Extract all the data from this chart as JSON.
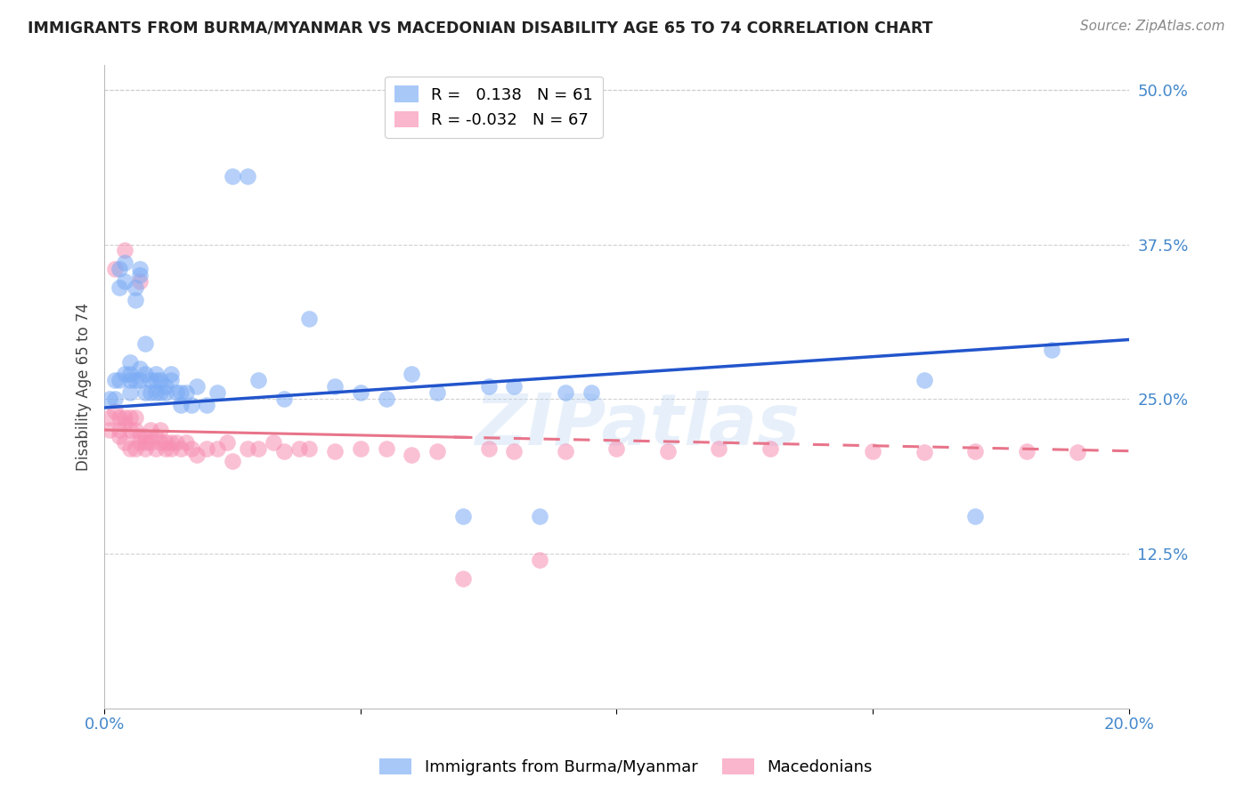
{
  "title": "IMMIGRANTS FROM BURMA/MYANMAR VS MACEDONIAN DISABILITY AGE 65 TO 74 CORRELATION CHART",
  "source": "Source: ZipAtlas.com",
  "ylabel": "Disability Age 65 to 74",
  "xlim": [
    0.0,
    0.2
  ],
  "ylim": [
    0.0,
    0.52
  ],
  "yticks": [
    0.125,
    0.25,
    0.375,
    0.5
  ],
  "ytick_labels": [
    "12.5%",
    "25.0%",
    "37.5%",
    "50.0%"
  ],
  "xtick_positions": [
    0.0,
    0.2
  ],
  "xtick_labels": [
    "0.0%",
    "20.0%"
  ],
  "grid_color": "#cccccc",
  "background_color": "#ffffff",
  "blue_R": 0.138,
  "blue_N": 61,
  "pink_R": -0.032,
  "pink_N": 67,
  "blue_color": "#7aabf5",
  "pink_color": "#f78fb3",
  "blue_line_color": "#2255cc",
  "pink_line_color": "#e8748a",
  "legend_label_blue": "Immigrants from Burma/Myanmar",
  "legend_label_pink": "Macedonians",
  "watermark": "ZIPatlas",
  "blue_x": [
    0.001,
    0.002,
    0.002,
    0.003,
    0.003,
    0.003,
    0.004,
    0.004,
    0.004,
    0.005,
    0.005,
    0.005,
    0.005,
    0.006,
    0.006,
    0.006,
    0.007,
    0.007,
    0.007,
    0.007,
    0.008,
    0.008,
    0.008,
    0.009,
    0.009,
    0.01,
    0.01,
    0.01,
    0.011,
    0.011,
    0.012,
    0.012,
    0.013,
    0.013,
    0.014,
    0.015,
    0.015,
    0.016,
    0.017,
    0.018,
    0.02,
    0.022,
    0.025,
    0.028,
    0.03,
    0.035,
    0.04,
    0.045,
    0.05,
    0.055,
    0.06,
    0.065,
    0.07,
    0.075,
    0.08,
    0.085,
    0.09,
    0.095,
    0.16,
    0.17,
    0.185
  ],
  "blue_y": [
    0.25,
    0.25,
    0.265,
    0.34,
    0.355,
    0.265,
    0.36,
    0.345,
    0.27,
    0.265,
    0.255,
    0.27,
    0.28,
    0.33,
    0.34,
    0.265,
    0.355,
    0.35,
    0.265,
    0.275,
    0.295,
    0.27,
    0.255,
    0.255,
    0.265,
    0.255,
    0.27,
    0.265,
    0.255,
    0.265,
    0.26,
    0.255,
    0.265,
    0.27,
    0.255,
    0.245,
    0.255,
    0.255,
    0.245,
    0.26,
    0.245,
    0.255,
    0.43,
    0.43,
    0.265,
    0.25,
    0.315,
    0.26,
    0.255,
    0.25,
    0.27,
    0.255,
    0.155,
    0.26,
    0.26,
    0.155,
    0.255,
    0.255,
    0.265,
    0.155,
    0.29
  ],
  "pink_x": [
    0.001,
    0.001,
    0.002,
    0.002,
    0.003,
    0.003,
    0.003,
    0.004,
    0.004,
    0.004,
    0.004,
    0.005,
    0.005,
    0.005,
    0.006,
    0.006,
    0.006,
    0.007,
    0.007,
    0.007,
    0.008,
    0.008,
    0.008,
    0.009,
    0.009,
    0.01,
    0.01,
    0.011,
    0.011,
    0.012,
    0.012,
    0.013,
    0.013,
    0.014,
    0.015,
    0.016,
    0.017,
    0.018,
    0.02,
    0.022,
    0.024,
    0.025,
    0.028,
    0.03,
    0.033,
    0.035,
    0.038,
    0.04,
    0.045,
    0.05,
    0.055,
    0.06,
    0.065,
    0.07,
    0.075,
    0.08,
    0.085,
    0.09,
    0.1,
    0.11,
    0.12,
    0.13,
    0.15,
    0.16,
    0.17,
    0.18,
    0.19
  ],
  "pink_y": [
    0.235,
    0.225,
    0.355,
    0.24,
    0.235,
    0.22,
    0.225,
    0.37,
    0.235,
    0.23,
    0.215,
    0.225,
    0.21,
    0.235,
    0.225,
    0.21,
    0.235,
    0.345,
    0.22,
    0.215,
    0.21,
    0.22,
    0.215,
    0.225,
    0.215,
    0.22,
    0.21,
    0.215,
    0.225,
    0.215,
    0.21,
    0.215,
    0.21,
    0.215,
    0.21,
    0.215,
    0.21,
    0.205,
    0.21,
    0.21,
    0.215,
    0.2,
    0.21,
    0.21,
    0.215,
    0.208,
    0.21,
    0.21,
    0.208,
    0.21,
    0.21,
    0.205,
    0.208,
    0.105,
    0.21,
    0.208,
    0.12,
    0.208,
    0.21,
    0.208,
    0.21,
    0.21,
    0.208,
    0.207,
    0.208,
    0.208,
    0.207
  ]
}
